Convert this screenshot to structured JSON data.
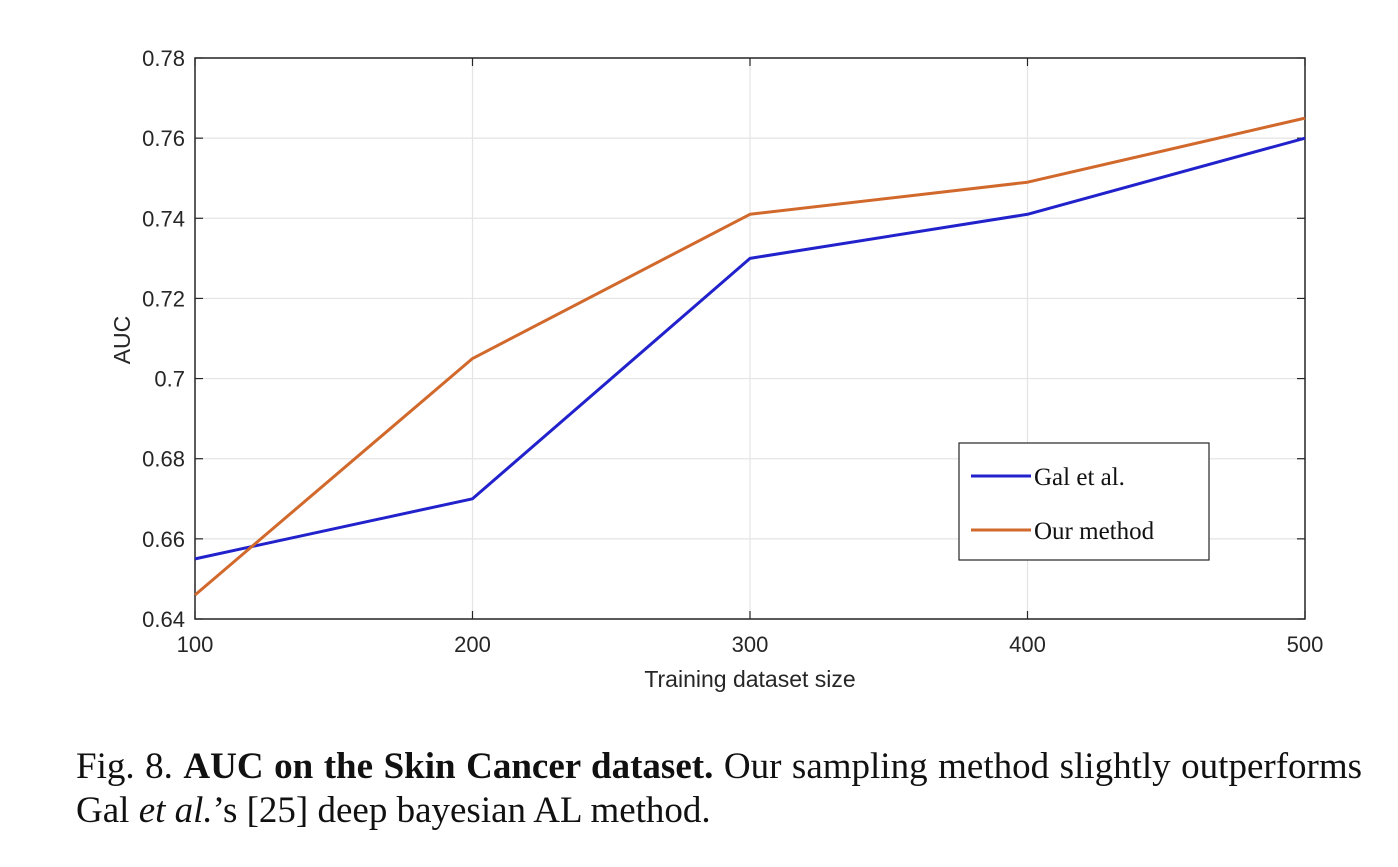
{
  "chart_data": {
    "type": "line",
    "xlabel": "Training dataset size",
    "ylabel": "AUC",
    "x": [
      100,
      200,
      300,
      400,
      500
    ],
    "xlim": [
      100,
      500
    ],
    "ylim": [
      0.64,
      0.78
    ],
    "xticks": [
      "100",
      "200",
      "300",
      "400",
      "500"
    ],
    "yticks": [
      "0.64",
      "0.66",
      "0.68",
      "0.7",
      "0.72",
      "0.74",
      "0.76",
      "0.78"
    ],
    "ytick_values": [
      0.64,
      0.66,
      0.68,
      0.7,
      0.72,
      0.74,
      0.76,
      0.78
    ],
    "xtick_values": [
      100,
      200,
      300,
      400,
      500
    ],
    "grid": true,
    "legend_position": "lower-right",
    "series": [
      {
        "name": "Gal et al.",
        "color": "#2222cc",
        "values": [
          0.655,
          0.67,
          0.73,
          0.741,
          0.76
        ]
      },
      {
        "name": "Our method",
        "color": "#d2692c",
        "values": [
          0.646,
          0.705,
          0.741,
          0.749,
          0.765
        ]
      }
    ]
  },
  "caption": {
    "prefix": "Fig. 8. ",
    "bold": "AUC on the Skin Cancer dataset.",
    "text1": " Our sampling method slightly outperforms Gal ",
    "italic": "et al.",
    "text2": "’s [25] deep bayesian AL method."
  }
}
